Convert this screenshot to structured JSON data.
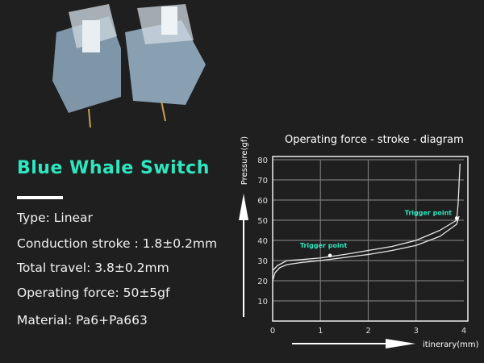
{
  "product": {
    "title": "Blue Whale Switch",
    "specs": [
      "Type: Linear",
      "Conduction stroke : 1.8±0.2mm",
      "Total travel:  3.8±0.2mm",
      "Operating force:  50±5gf",
      "Material:  Pa6+Pa663"
    ]
  },
  "colors": {
    "accent": "#2ee6c0",
    "background": "#1f1f1f",
    "housing": "#8aa3b8"
  },
  "chart_data": {
    "type": "line",
    "title": "Operating force - stroke - diagram",
    "xlabel": "itinerary(mm)",
    "ylabel": "Pressure(gf)",
    "xlim": [
      0,
      4
    ],
    "ylim": [
      0,
      80
    ],
    "xticks": [
      0,
      1,
      2,
      3,
      4
    ],
    "yticks": [
      10,
      20,
      30,
      40,
      50,
      60,
      70,
      80
    ],
    "grid": true,
    "series": [
      {
        "x": [
          0,
          0.1,
          0.3,
          0.6,
          1,
          1.5,
          2,
          2.5,
          3,
          3.5,
          3.85,
          3.88,
          3.9,
          3.92
        ],
        "y": [
          25,
          27.5,
          30,
          30.5,
          31.3,
          33,
          35,
          37,
          40,
          45,
          50,
          58,
          68,
          78
        ]
      },
      {
        "x": [
          0,
          0.05,
          0.15,
          0.3,
          0.6,
          1,
          1.5,
          2,
          2.5,
          3,
          3.5,
          3.85,
          3.9
        ],
        "y": [
          20,
          24,
          26.5,
          28,
          29,
          30,
          31.5,
          33,
          35,
          37.5,
          42,
          48,
          52
        ]
      }
    ],
    "annotations": [
      {
        "text": "Trigger point",
        "x": 1.2,
        "y": 32.5
      },
      {
        "text": "Trigger point",
        "x": 3.85,
        "y": 51
      }
    ]
  }
}
